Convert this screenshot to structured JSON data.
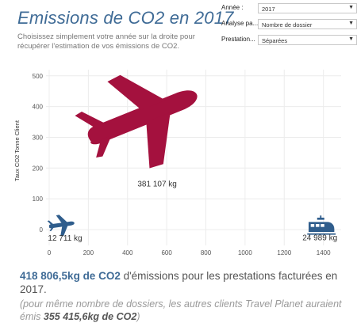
{
  "header": {
    "title": "Emissions de CO2 en 2017",
    "subtitle": "Choisissez simplement votre année sur la droite pour récupérer l'estimation de vos émissions de CO2."
  },
  "filters": [
    {
      "label": "Année :",
      "value": "2017"
    },
    {
      "label": "Analyse pa...",
      "value": "Nombre de dossier"
    },
    {
      "label": "Prestation...",
      "value": "Séparées"
    }
  ],
  "chart_data": {
    "type": "scatter",
    "ylabel": "Taux CO2 Tonne Client",
    "xlabel": "",
    "xlim": [
      0,
      1450
    ],
    "ylim": [
      0,
      520
    ],
    "x_ticks": [
      0,
      200,
      400,
      600,
      800,
      1000,
      1200,
      1400
    ],
    "y_ticks": [
      0,
      100,
      200,
      300,
      400,
      500
    ],
    "grid": true,
    "points": [
      {
        "x": 600,
        "y": 360,
        "size": 381107,
        "label": "381 107 kg",
        "icon": "airplane-icon",
        "color": "#a4113e"
      },
      {
        "x": 0,
        "y": 10,
        "size": 12711,
        "label": "12 711 kg",
        "icon": "small-airplane-icon",
        "color": "#2f5d8c"
      },
      {
        "x": 1390,
        "y": 12,
        "size": 24989,
        "label": "24 989 kg",
        "icon": "train-icon",
        "color": "#2f5d8c"
      }
    ]
  },
  "summary": {
    "highlight": "418 806,5kg de CO2",
    "text": " d'émissions pour les prestations facturées en 2017."
  },
  "note": {
    "prefix": "(pour même nombre de dossiers, les autres clients Travel Planet auraient émis ",
    "highlight": "355 415,6kg de CO2",
    "suffix": ")"
  }
}
